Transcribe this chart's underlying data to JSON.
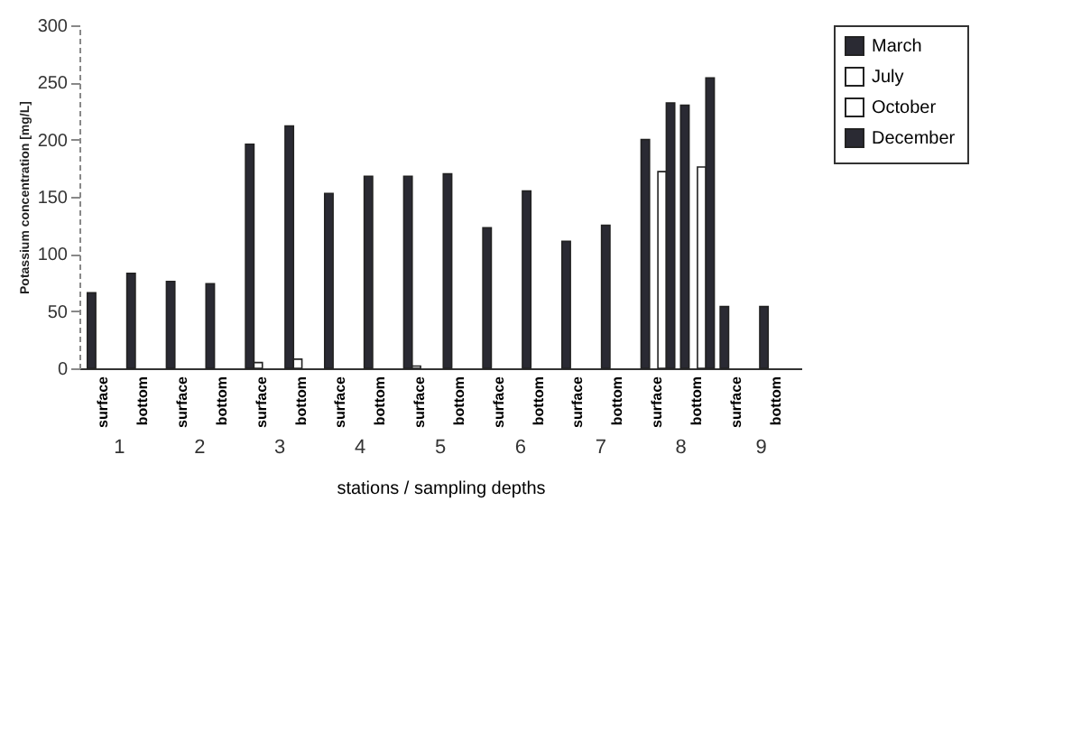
{
  "chart_data": {
    "type": "bar",
    "xlabel": "stations / sampling depths",
    "ylabel": "Potassium concentration [mg/L]",
    "categories": [
      "surface",
      "bottom",
      "surface",
      "bottom",
      "surface",
      "bottom",
      "surface",
      "bottom",
      "surface",
      "bottom",
      "surface",
      "bottom",
      "surface",
      "bottom",
      "surface",
      "bottom",
      "surface",
      "bottom"
    ],
    "series": [
      {
        "name": "March",
        "color": "#2a2a33",
        "values": [
          66,
          83,
          76,
          74,
          196,
          212,
          153,
          168,
          168,
          170,
          123,
          155,
          111,
          125,
          200,
          230,
          54,
          54
        ]
      },
      {
        "name": "July",
        "color": "#ffffff",
        "values": [
          null,
          null,
          null,
          null,
          5,
          8,
          null,
          null,
          2,
          null,
          null,
          null,
          null,
          null,
          null,
          null,
          null,
          null
        ]
      },
      {
        "name": "October",
        "color": "#ffffff",
        "values": [
          null,
          null,
          null,
          null,
          null,
          null,
          null,
          null,
          null,
          null,
          null,
          null,
          null,
          null,
          172,
          176,
          null,
          null
        ]
      },
      {
        "name": "December",
        "color": "#2a2a33",
        "values": [
          null,
          null,
          null,
          null,
          null,
          null,
          null,
          null,
          null,
          null,
          null,
          null,
          null,
          null,
          232,
          254,
          null,
          null
        ]
      }
    ],
    "annotations": [
      "1",
      "2",
      "3",
      "4",
      "5",
      "6",
      "7",
      "8",
      "9"
    ],
    "ylim": [
      0,
      300
    ],
    "yticks": [
      0,
      50,
      100,
      150,
      200,
      250,
      300
    ],
    "grid": false,
    "legend": "right"
  }
}
